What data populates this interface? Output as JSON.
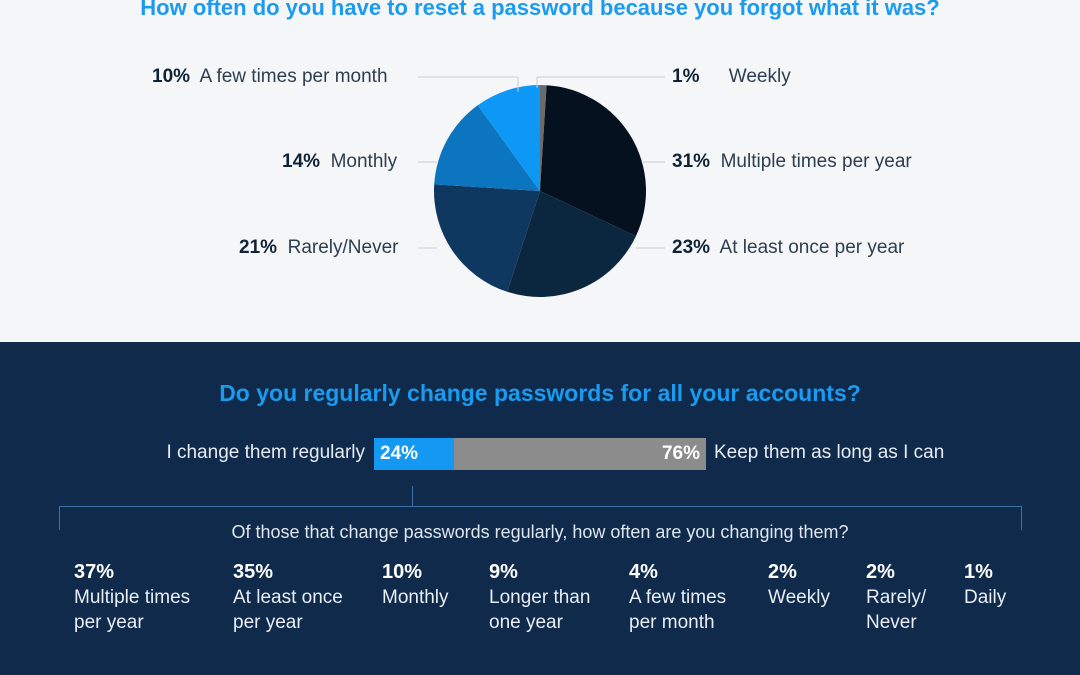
{
  "title": "How often do you have to reset a password because you forgot what it was?",
  "chart_data": [
    {
      "type": "pie",
      "title": "How often do you have to reset a password because you forgot what it was?",
      "slices": [
        {
          "label": "Weekly",
          "value": 1,
          "color": "#6b6b6b"
        },
        {
          "label": "Multiple times per year",
          "value": 31,
          "color": "#05111e"
        },
        {
          "label": "At least once per year",
          "value": 23,
          "color": "#0b2740"
        },
        {
          "label": "Rarely/Never",
          "value": 21,
          "color": "#0e3860"
        },
        {
          "label": "Monthly",
          "value": 14,
          "color": "#0b75c0"
        },
        {
          "label": "A few times per month",
          "value": 10,
          "color": "#0e98f5"
        }
      ]
    },
    {
      "type": "bar",
      "title": "Do you regularly change passwords for all your accounts?",
      "categories": [
        "I change them regularly",
        "Keep them as long as I can"
      ],
      "values": [
        24,
        76
      ],
      "colors": [
        "#1399f2",
        "#8c8c8c"
      ]
    },
    {
      "type": "table",
      "title": "Of those that change passwords regularly, how often are you changing them?",
      "categories": [
        "Multiple times per year",
        "At least once per year",
        "Monthly",
        "Longer than one year",
        "A few times per month",
        "Weekly",
        "Rarely/ Never",
        "Daily"
      ],
      "values": [
        37,
        35,
        10,
        9,
        4,
        2,
        2,
        1
      ]
    }
  ],
  "pie_labels": {
    "few_month": {
      "pct": "10%",
      "text": "A few times per month"
    },
    "monthly": {
      "pct": "14%",
      "text": "Monthly"
    },
    "rarely": {
      "pct": "21%",
      "text": "Rarely/Never"
    },
    "weekly": {
      "pct": "1%",
      "text": "Weekly"
    },
    "multi_year": {
      "pct": "31%",
      "text": "Multiple times per year"
    },
    "once_year": {
      "pct": "23%",
      "text": "At least once per year"
    }
  },
  "q2": {
    "title": "Do you regularly change passwords for all your accounts?",
    "left_label": "I change them regularly",
    "left_pct": "24%",
    "right_pct": "76%",
    "right_label": "Keep them as long as I can"
  },
  "q3": {
    "title": "Of those that change passwords regularly, how often are you changing them?",
    "stats": [
      {
        "pct": "37%",
        "label": "Multiple times per year"
      },
      {
        "pct": "35%",
        "label": "At least once per year"
      },
      {
        "pct": "10%",
        "label": "Monthly"
      },
      {
        "pct": "9%",
        "label": "Longer than one year"
      },
      {
        "pct": "4%",
        "label": "A few times per month"
      },
      {
        "pct": "2%",
        "label": "Weekly"
      },
      {
        "pct": "2%",
        "label": "Rarely/ Never"
      },
      {
        "pct": "1%",
        "label": "Daily"
      }
    ]
  }
}
